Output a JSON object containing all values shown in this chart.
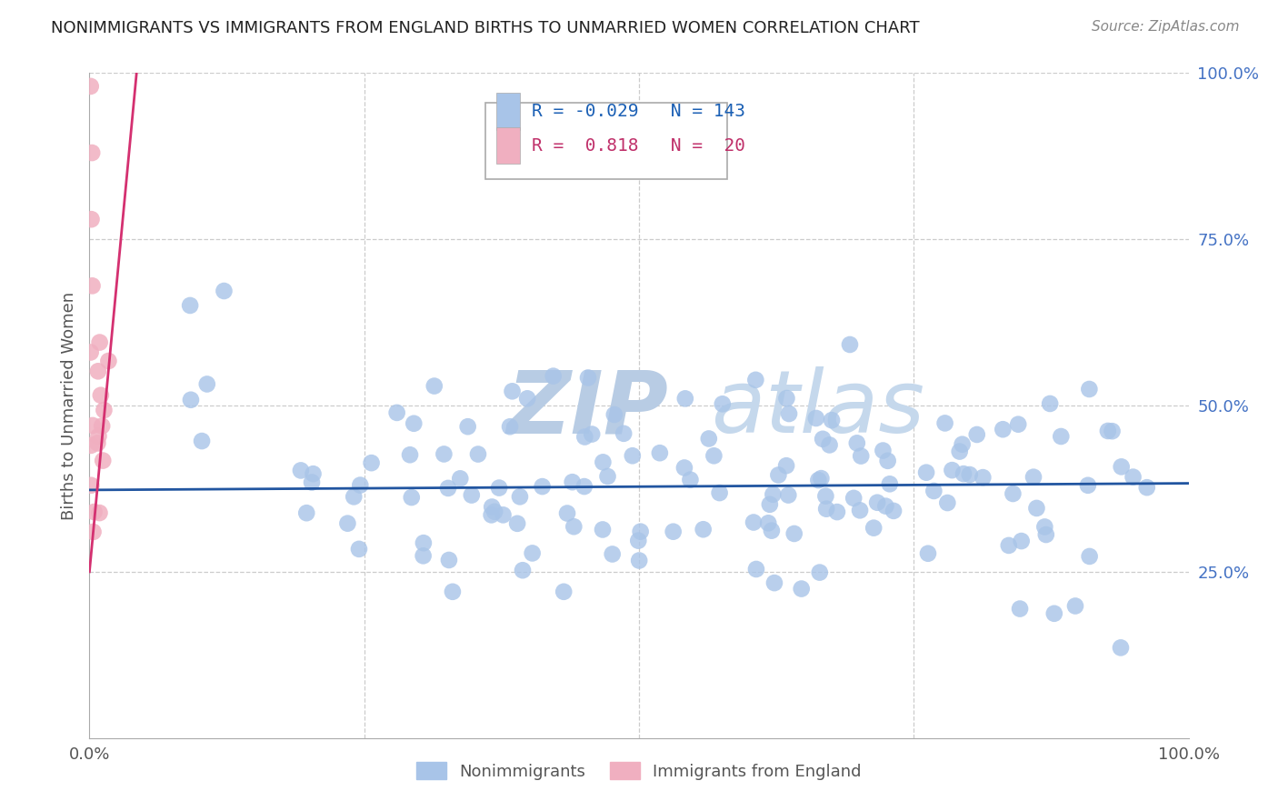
{
  "title": "NONIMMIGRANTS VS IMMIGRANTS FROM ENGLAND BIRTHS TO UNMARRIED WOMEN CORRELATION CHART",
  "source": "Source: ZipAtlas.com",
  "ylabel": "Births to Unmarried Women",
  "xlim": [
    0,
    1.0
  ],
  "ylim": [
    0,
    1.0
  ],
  "grid_color": "#cccccc",
  "background_color": "#ffffff",
  "watermark_text1": "ZIP",
  "watermark_text2": "atlas",
  "watermark_color1": "#b8cce4",
  "watermark_color2": "#c5d8ec",
  "blue_color": "#a8c4e8",
  "pink_color": "#f0afc0",
  "blue_line_color": "#2155a0",
  "pink_line_color": "#d43070",
  "legend_R_blue": "-0.029",
  "legend_N_blue": "143",
  "legend_R_pink": "0.818",
  "legend_N_pink": "20",
  "blue_scatter_seed": 123,
  "pink_scatter_seed": 456
}
